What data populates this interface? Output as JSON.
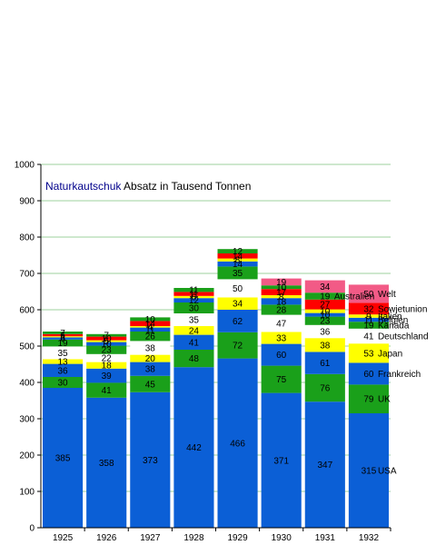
{
  "chart_data": {
    "type": "bar",
    "stacked": true,
    "title_accent": "Naturkautschuk",
    "title_rest": " Absatz in  Tausend Tonnen",
    "categories": [
      "1925",
      "1926",
      "1927",
      "1928",
      "1929",
      "1930",
      "1931",
      "1932"
    ],
    "ylim": [
      0,
      1000
    ],
    "yticks": [
      0,
      100,
      200,
      300,
      400,
      500,
      600,
      700,
      800,
      900,
      1000
    ],
    "grid": true,
    "legend": "labels beside the last bar",
    "series": [
      {
        "name": "USA",
        "color": "#0b5fd6",
        "values": [
          385,
          358,
          373,
          442,
          466,
          371,
          347,
          315
        ]
      },
      {
        "name": "UK",
        "color": "#1aa01a",
        "values": [
          30,
          41,
          45,
          48,
          72,
          75,
          76,
          79
        ]
      },
      {
        "name": "Frankreich",
        "color": "#0b5fd6",
        "values": [
          36,
          39,
          38,
          41,
          62,
          60,
          61,
          60
        ]
      },
      {
        "name": "Japan",
        "color": "#ffff00",
        "values": [
          13,
          18,
          20,
          24,
          34,
          33,
          38,
          53
        ]
      },
      {
        "name": "Deutschland",
        "color": "#ffffff",
        "values": [
          35,
          22,
          38,
          35,
          50,
          47,
          36,
          41
        ]
      },
      {
        "name": "Kanada",
        "color": "#1aa01a",
        "values": [
          19,
          23,
          26,
          30,
          35,
          28,
          23,
          19
        ]
      },
      {
        "name": "Belgien",
        "color": "#0b5fd6",
        "values": [
          6,
          10,
          11,
          12,
          14,
          18,
          10,
          11
        ]
      },
      {
        "name": "Italien",
        "color": "#ffff00",
        "values": [
          3,
          5,
          4,
          6,
          8,
          8,
          10,
          9
        ]
      },
      {
        "name": "Sowjetunion",
        "color": "#ff0000",
        "values": [
          6,
          10,
          14,
          11,
          14,
          17,
          27,
          32
        ]
      },
      {
        "name": "Australien",
        "color": "#1aa01a",
        "values": [
          7,
          7,
          10,
          11,
          12,
          10,
          19,
          0
        ]
      },
      {
        "name": "Welt",
        "color": "#f25a86",
        "values": [
          0,
          0,
          0,
          0,
          0,
          19,
          34,
          50
        ]
      }
    ]
  }
}
